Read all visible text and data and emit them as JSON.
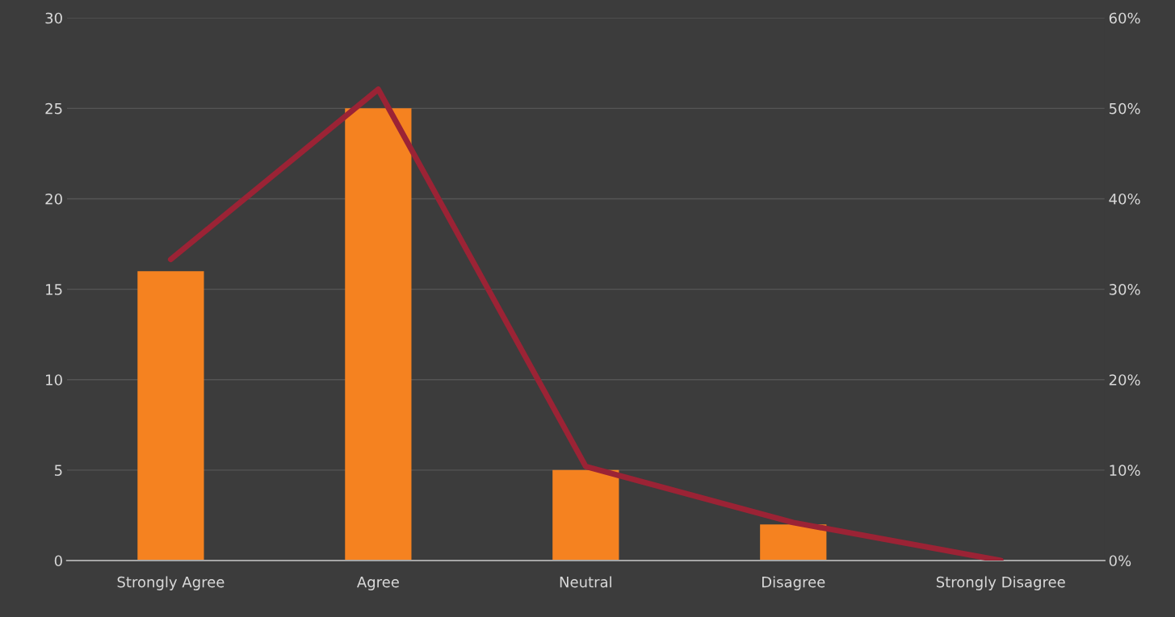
{
  "chart_data": {
    "type": "bar",
    "categories": [
      "Strongly Agree",
      "Agree",
      "Neutral",
      "Disagree",
      "Strongly Disagree"
    ],
    "series": [
      {
        "color": "#f58220",
        "values": [
          16,
          25,
          5,
          2,
          0
        ]
      },
      {
        "type": "line",
        "axis": "y2",
        "color": "#9b2335",
        "values": [
          33.3,
          52.1,
          10.4,
          4.2,
          0
        ]
      }
    ],
    "ylim": [
      0,
      30
    ],
    "yticks": [
      0,
      5,
      10,
      15,
      20,
      25,
      30
    ],
    "y2lim": [
      0,
      60
    ],
    "y2ticks": [
      {
        "value": 0,
        "label": "0%"
      },
      {
        "value": 10,
        "label": "10%"
      },
      {
        "value": 20,
        "label": "20%"
      },
      {
        "value": 30,
        "label": "30%"
      },
      {
        "value": 40,
        "label": "40%"
      },
      {
        "value": 50,
        "label": "50%"
      },
      {
        "value": 60,
        "label": "60%"
      }
    ],
    "grid": "y",
    "legend": false,
    "marker": "none",
    "line_style": "solid"
  }
}
